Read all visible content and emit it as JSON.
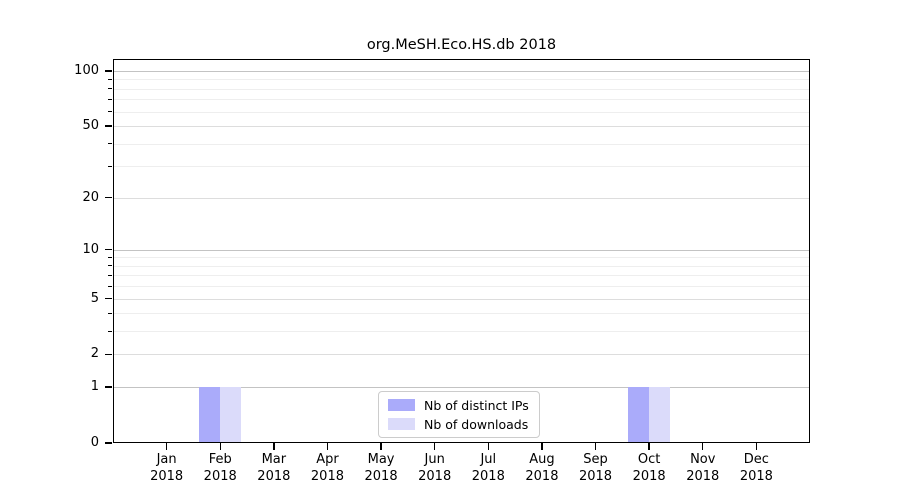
{
  "chart_data": {
    "type": "bar",
    "title": "org.MeSH.Eco.HS.db 2018",
    "x_categories": [
      {
        "month": "Jan",
        "year": "2018"
      },
      {
        "month": "Feb",
        "year": "2018"
      },
      {
        "month": "Mar",
        "year": "2018"
      },
      {
        "month": "Apr",
        "year": "2018"
      },
      {
        "month": "May",
        "year": "2018"
      },
      {
        "month": "Jun",
        "year": "2018"
      },
      {
        "month": "Jul",
        "year": "2018"
      },
      {
        "month": "Aug",
        "year": "2018"
      },
      {
        "month": "Sep",
        "year": "2018"
      },
      {
        "month": "Oct",
        "year": "2018"
      },
      {
        "month": "Nov",
        "year": "2018"
      },
      {
        "month": "Dec",
        "year": "2018"
      }
    ],
    "series": [
      {
        "name": "Nb of distinct IPs",
        "color": "#aaabfa",
        "values": [
          0,
          1,
          0,
          0,
          0,
          0,
          0,
          0,
          0,
          1,
          0,
          0
        ]
      },
      {
        "name": "Nb of downloads",
        "color": "#dbdbfa",
        "values": [
          0,
          1,
          0,
          0,
          0,
          0,
          0,
          0,
          0,
          1,
          0,
          0
        ]
      }
    ],
    "y_axis": {
      "scale": "log1p",
      "max": 100,
      "major_ticks": [
        0,
        1,
        2,
        5,
        10,
        20,
        50,
        100
      ],
      "emphasized_gridlines": [
        1,
        10,
        100
      ],
      "minor_gridlines": [
        3,
        4,
        6,
        7,
        8,
        9,
        30,
        40,
        60,
        70,
        80,
        90
      ]
    },
    "legend_position": "bottom-center",
    "grid": "horizontal",
    "colors": {
      "axis": "#000000",
      "grid_major": "#c3c3c3",
      "grid_mid": "#dddddd",
      "grid_minor": "#eeeeee",
      "background": "#ffffff"
    }
  }
}
